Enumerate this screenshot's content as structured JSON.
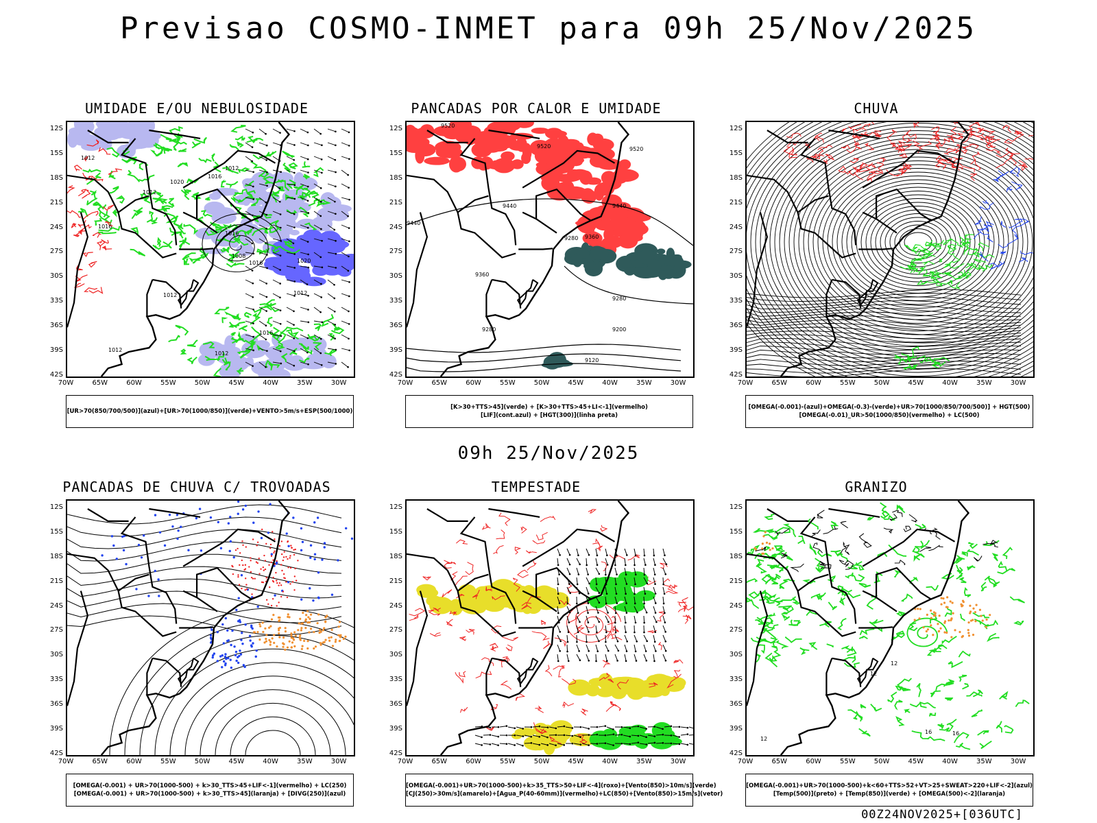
{
  "title": "Previsao COSMO-INMET  para 09h 25/Nov/2025",
  "mid_title": "09h 25/Nov/2025",
  "footer": "00Z24NOV2025+[036UTC]",
  "axes": {
    "lat_labels": [
      "12S",
      "15S",
      "18S",
      "21S",
      "24S",
      "27S",
      "30S",
      "33S",
      "36S",
      "39S",
      "42S"
    ],
    "lon_labels": [
      "70W",
      "65W",
      "60W",
      "55W",
      "50W",
      "45W",
      "40W",
      "35W",
      "30W"
    ]
  },
  "panels": [
    {
      "id": "umidade",
      "title": "UMIDADE E/OU NEBULOSIDADE",
      "legend": [
        "[UR>70(850/700/500)](azul)+[UR>70(1000/850)](verde)+VENTO>5m/s+ESP(500/1000)"
      ],
      "contour_labels": [
        "1012",
        "1012",
        "1012",
        "1016",
        "1016",
        "1008",
        "1016",
        "1020",
        "1012",
        "1016",
        "1020",
        "1012",
        "1016",
        "1012",
        "1012"
      ]
    },
    {
      "id": "pancadas-calor",
      "title": "PANCADAS POR CALOR E UMIDADE",
      "legend": [
        "[K>30+TTS>45](verde) + [K>30+TTS>45+LI<-1](vermelho)",
        "[LIF](cont.azul) + [HGT(300)](linha preta)"
      ],
      "contour_labels": [
        "9520",
        "9520",
        "9520",
        "9440",
        "9440",
        "9440",
        "9360",
        "9360",
        "9280",
        "9280",
        "9280",
        "9200",
        "9120"
      ]
    },
    {
      "id": "chuva",
      "title": "CHUVA",
      "legend": [
        "[OMEGA(-0.001)-(azul)+OMEGA(-0.3)-(verde)+UR>70(1000/850/700/500)] + HGT(500)",
        "[OMEGA(-0.01)_UR>50(1000/850)(vermelho) + LC(500)"
      ]
    },
    {
      "id": "trovoadas",
      "title": "PANCADAS DE CHUVA C/ TROVOADAS",
      "legend": [
        "[OMEGA(-0.001) + UR>70(1000-500) + k>30_TTS>45+LIF<-1](vermelho) + LC(250)",
        "[OMEGA(-0.001) + UR>70(1000-500) + k>30_TTS>45](laranja) + [DIVG(250)](azul)"
      ]
    },
    {
      "id": "tempestade",
      "title": "TEMPESTADE",
      "legend": [
        "[OMEGA(-0.001)+UR>70(1000-500)+k>35_TTS>50+LIF<-4](roxo)+[Vento(850)>10m/s](verde)",
        "[CJ(250)>30m/s](amarelo)+[Agua_P(40-60mm)](vermelho)+LC(850)+[Vento(850)>15m/s](vetor)"
      ]
    },
    {
      "id": "granizo",
      "title": "GRANIZO",
      "legend": [
        "[OMEGA(-0.001)+UR>70(1000-500)+k<60+TTS>52+VT>25+SWEAT>220+LIF<-2](azul)",
        "[Temp(500)](preto) + [Temp(850)](verde) + [OMEGA(500)<-2](laranja)"
      ],
      "contour_labels": [
        "12",
        "12",
        "12",
        "16",
        "16"
      ]
    }
  ],
  "colors": {
    "coast": "#000000",
    "humid_low": "#22dd22",
    "humid_high": "#6666ff",
    "pale_blue": "#b8b8f0",
    "heat_red": "#ff4040",
    "heat_teal": "#2f5a5a",
    "jet_yellow": "#e8de2a",
    "orange": "#f09030",
    "dot_blue": "#2244ee",
    "dashed_red": "#ee2222"
  }
}
